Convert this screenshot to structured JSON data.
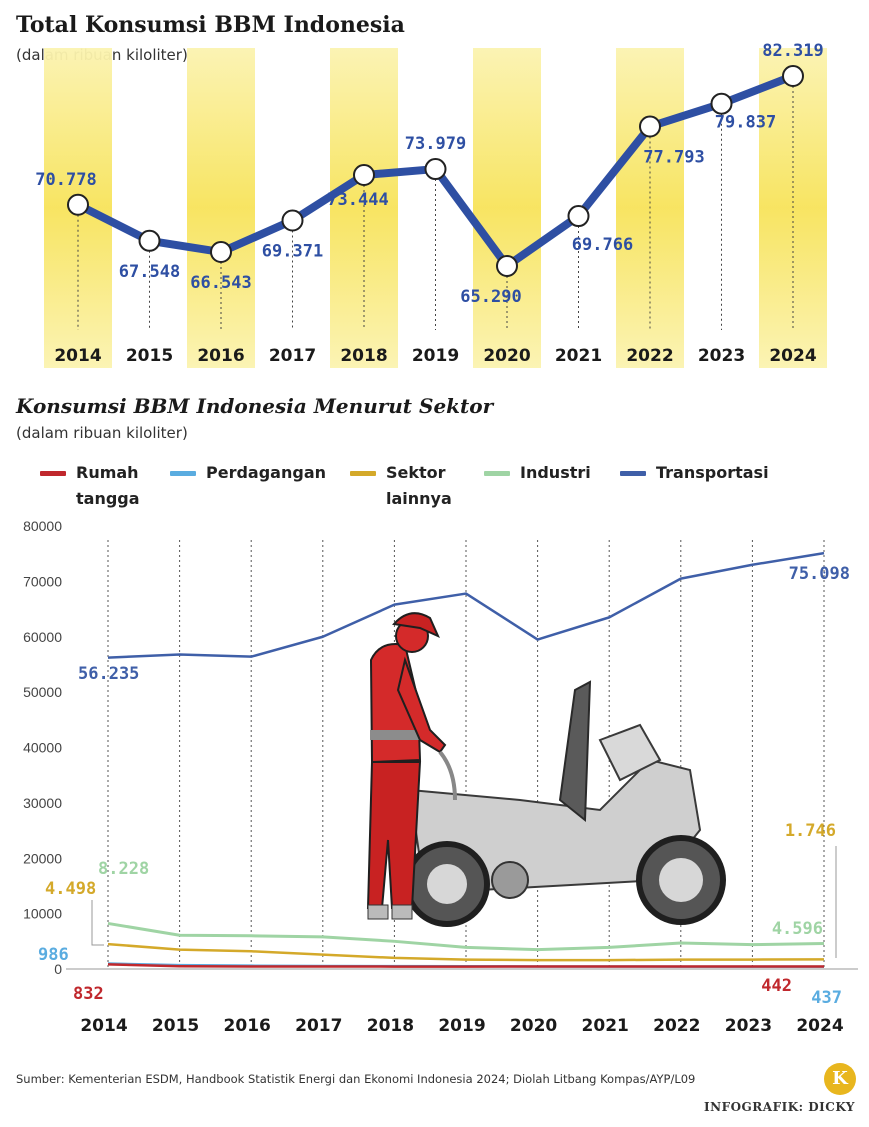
{
  "top_chart": {
    "title": "Total Konsumsi BBM Indonesia",
    "subtitle": "(dalam ribuan kiloliter)"
  },
  "bottom_chart": {
    "title": "Konsumsi BBM Indonesia Menurut Sektor",
    "subtitle": "(dalam ribuan kiloliter)"
  },
  "legend": [
    {
      "label": "Rumah\ntangga",
      "color": "#c0282d"
    },
    {
      "label": "Perdagangan",
      "color": "#5aace0"
    },
    {
      "label": "Sektor\nlainnya",
      "color": "#d4a92a"
    },
    {
      "label": "Industri",
      "color": "#9fd4a4"
    },
    {
      "label": "Transportasi",
      "color": "#3f5fa8"
    }
  ],
  "footer": {
    "source": "Sumber: Kementerian ESDM, Handbook Statistik Energi dan Ekonomi Indonesia 2024; Diolah Litbang Kompas/AYP/L09",
    "credit": "INFOGRAFIK: DICKY",
    "logo_letter": "K"
  },
  "chart_data": [
    {
      "type": "line",
      "title": "Total Konsumsi BBM Indonesia",
      "subtitle": "(dalam ribuan kiloliter)",
      "x": [
        "2014",
        "2015",
        "2016",
        "2017",
        "2018",
        "2019",
        "2020",
        "2021",
        "2022",
        "2023",
        "2024"
      ],
      "values": [
        70778,
        67548,
        66543,
        69371,
        73444,
        73979,
        65290,
        69766,
        77793,
        79837,
        82319
      ],
      "labels": [
        "70.778",
        "67.548",
        "66.543",
        "69.371",
        "73.444",
        "73.979",
        "65.290",
        "69.766",
        "77.793",
        "79.837",
        "82.319"
      ],
      "line_color": "#2e4fa3",
      "band_color": "#f7e35a",
      "grid": false
    },
    {
      "type": "line",
      "title": "Konsumsi BBM Indonesia Menurut Sektor",
      "subtitle": "(dalam ribuan kiloliter)",
      "x": [
        "2014",
        "2015",
        "2016",
        "2017",
        "2018",
        "2019",
        "2020",
        "2021",
        "2022",
        "2023",
        "2024"
      ],
      "ylim": [
        0,
        80000
      ],
      "yticks": [
        "0",
        "10000",
        "20000",
        "30000",
        "40000",
        "50000",
        "60000",
        "70000",
        "80000"
      ],
      "series": [
        {
          "name": "Transportasi",
          "color": "#3f5fa8",
          "values": [
            56235,
            56800,
            56400,
            60000,
            65800,
            67800,
            59500,
            63500,
            70500,
            73000,
            75098
          ]
        },
        {
          "name": "Industri",
          "color": "#9fd4a4",
          "values": [
            8228,
            6100,
            6000,
            5800,
            5000,
            3900,
            3500,
            3900,
            4700,
            4400,
            4596
          ]
        },
        {
          "name": "Sektor lainnya",
          "color": "#d4a92a",
          "values": [
            4498,
            3500,
            3200,
            2600,
            2000,
            1700,
            1600,
            1600,
            1700,
            1700,
            1746
          ]
        },
        {
          "name": "Perdagangan",
          "color": "#5aace0",
          "values": [
            986,
            700,
            600,
            550,
            520,
            500,
            460,
            450,
            440,
            440,
            437
          ]
        },
        {
          "name": "Rumah tangga",
          "color": "#c0282d",
          "values": [
            832,
            500,
            450,
            450,
            440,
            440,
            445,
            445,
            442,
            442,
            442
          ]
        }
      ],
      "annotations": [
        {
          "series": "Transportasi",
          "year": "2014",
          "label": "56.235"
        },
        {
          "series": "Transportasi",
          "year": "2024",
          "label": "75.098"
        },
        {
          "series": "Industri",
          "year": "2014",
          "label": "8.228"
        },
        {
          "series": "Industri",
          "year": "2024",
          "label": "4.596"
        },
        {
          "series": "Sektor lainnya",
          "year": "2014",
          "label": "4.498"
        },
        {
          "series": "Sektor lainnya",
          "year": "2024",
          "label": "1.746"
        },
        {
          "series": "Perdagangan",
          "year": "2014",
          "label": "986"
        },
        {
          "series": "Perdagangan",
          "year": "2024",
          "label": "437"
        },
        {
          "series": "Rumah tangga",
          "year": "2014",
          "label": "832"
        },
        {
          "series": "Rumah tangga",
          "year": "2024",
          "label": "442"
        }
      ],
      "grid": "vertical dashed"
    }
  ]
}
